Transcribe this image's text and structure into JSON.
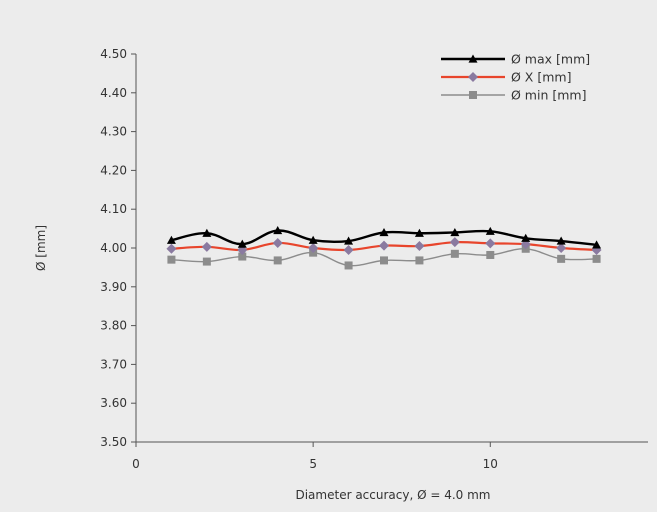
{
  "chart_data": {
    "type": "line",
    "title": "",
    "xlabel": "Diameter accuracy, Ø = 4.0 mm",
    "ylabel": "Ø [mm]",
    "xlim": [
      0,
      14
    ],
    "ylim": [
      3.5,
      4.5
    ],
    "x_ticks": [
      0,
      5,
      10
    ],
    "x_tick_labels": [
      "0",
      "5",
      "10"
    ],
    "y_ticks": [
      3.5,
      3.6,
      3.7,
      3.8,
      3.9,
      4.0,
      4.1,
      4.2,
      4.3,
      4.4,
      4.5
    ],
    "y_tick_labels": [
      "3.50",
      "3.60",
      "3.70",
      "3.80",
      "3.90",
      "4.00",
      "4.10",
      "4.20",
      "4.30",
      "4.40",
      "4.50"
    ],
    "grid": false,
    "legend_position": "top-right",
    "background_color": "#ececec",
    "x": [
      1,
      2,
      3,
      4,
      5,
      6,
      7,
      8,
      9,
      10,
      11,
      12,
      13
    ],
    "series": [
      {
        "name": "Ø max [mm]",
        "color": "#000000",
        "marker": "triangle",
        "values": [
          4.02,
          4.038,
          4.01,
          4.045,
          4.02,
          4.018,
          4.04,
          4.038,
          4.04,
          4.043,
          4.025,
          4.018,
          4.008
        ]
      },
      {
        "name": "Ø X [mm]",
        "color": "#e8452c",
        "marker_color": "#8a7aa0",
        "marker": "diamond",
        "values": [
          3.998,
          4.003,
          3.995,
          4.013,
          4.0,
          3.995,
          4.006,
          4.005,
          4.015,
          4.012,
          4.01,
          4.0,
          3.995
        ]
      },
      {
        "name": "Ø min [mm]",
        "color": "#8c8c8c",
        "marker": "square",
        "values": [
          3.97,
          3.965,
          3.978,
          3.968,
          3.988,
          3.955,
          3.968,
          3.968,
          3.985,
          3.982,
          3.998,
          3.972,
          3.972
        ]
      }
    ]
  }
}
